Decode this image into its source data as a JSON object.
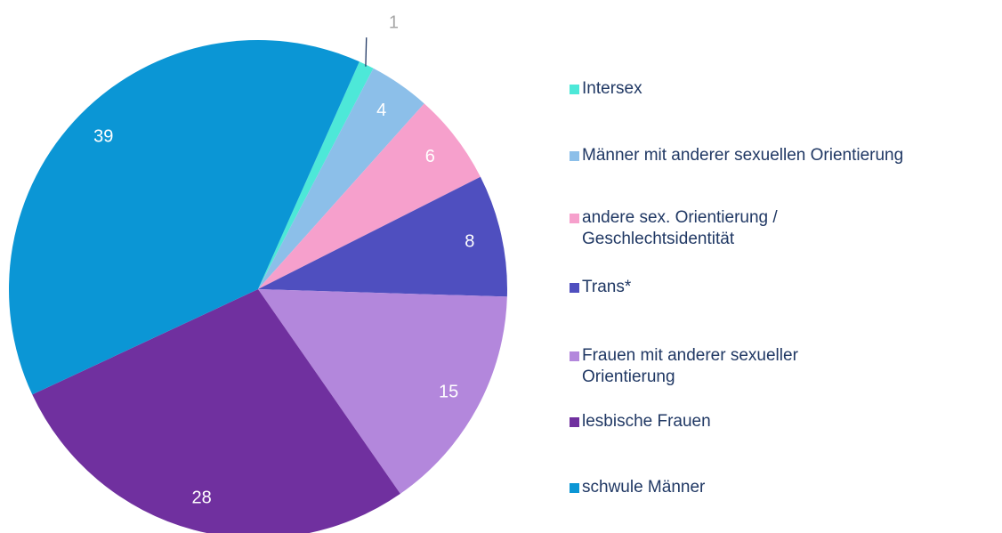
{
  "chart_data": {
    "type": "pie",
    "categories": [
      "Intersex",
      "Männer mit anderer sexuellen Orientierung",
      "andere sex. Orientierung / Geschlechtsidentität",
      "Trans*",
      "Frauen mit anderer sexueller Orientierung",
      "lesbische Frauen",
      "schwule Männer"
    ],
    "values": [
      1,
      4,
      6,
      8,
      15,
      28,
      39
    ],
    "colors": [
      "#4de8d8",
      "#8cbfe9",
      "#f6a0cc",
      "#4f4fbf",
      "#b387dc",
      "#70309f",
      "#0b96d5"
    ],
    "legend": "right"
  }
}
